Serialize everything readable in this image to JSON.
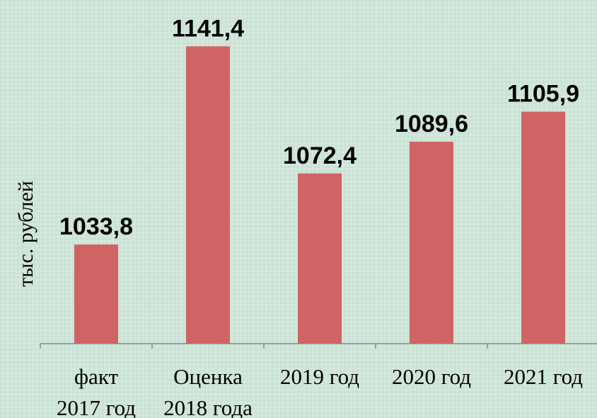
{
  "chart_data": {
    "type": "bar",
    "y_label": "тыс. рублей",
    "categories": [
      [
        "факт",
        "2017 год"
      ],
      [
        "Оценка",
        "2018 года"
      ],
      [
        "2019 год"
      ],
      [
        "2020 год"
      ],
      [
        "2021 год"
      ]
    ],
    "values": [
      1033.8,
      1141.4,
      1072.4,
      1089.6,
      1105.9
    ],
    "value_labels": [
      "1033,8",
      "1141,4",
      "1072,4",
      "1089,6",
      "1105,9"
    ],
    "color": "#d06464",
    "ylim": [
      980,
      1160
    ]
  }
}
